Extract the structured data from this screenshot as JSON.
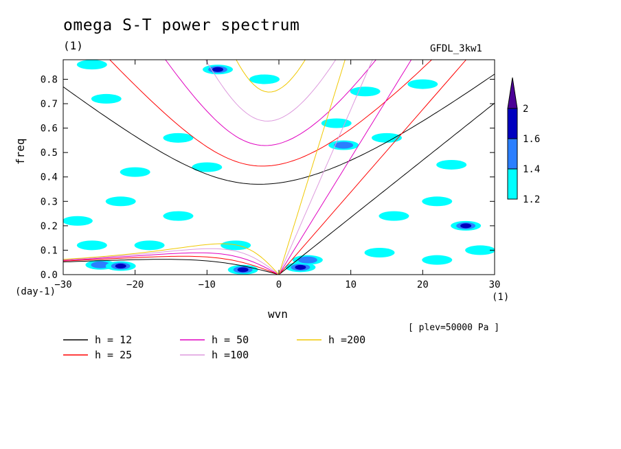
{
  "title": "omega S-T power spectrum",
  "subtitle": "(1)",
  "model": "GFDL_3kw1",
  "pressure_note": "[ plev=50000 Pa ]",
  "chart_data": {
    "type": "heatmap",
    "title": "omega S-T power spectrum",
    "xlabel": "wvn",
    "ylabel": "freq",
    "x_unit": "(1)",
    "y_unit": "(day-1)",
    "xlim": [
      -30,
      30
    ],
    "ylim": [
      0,
      0.88
    ],
    "x_ticks": [
      -30,
      -20,
      -10,
      0,
      10,
      20,
      30
    ],
    "y_ticks": [
      0.0,
      0.1,
      0.2,
      0.3,
      0.4,
      0.5,
      0.6,
      0.7,
      0.8
    ],
    "colorbar": {
      "levels": [
        "1.2",
        "1.4",
        "1.6",
        "2"
      ],
      "colors": [
        "#00ffff",
        "#2b7fff",
        "#0000bf",
        "#4b0096"
      ]
    },
    "contour_regions": [
      {
        "x": -24.8,
        "y": 0.04,
        "level": 1.4
      },
      {
        "x": -22,
        "y": 0.035,
        "level": 1.6
      },
      {
        "x": -5,
        "y": 0.02,
        "level": 1.6
      },
      {
        "x": 3,
        "y": 0.03,
        "level": 2.0
      },
      {
        "x": 4,
        "y": 0.06,
        "level": 1.4
      },
      {
        "x": -8.5,
        "y": 0.84,
        "level": 1.6
      },
      {
        "x": 26,
        "y": 0.2,
        "level": 1.6
      },
      {
        "x": -24,
        "y": 0.72,
        "level": 1.2
      },
      {
        "x": -14,
        "y": 0.56,
        "level": 1.2
      },
      {
        "x": -20,
        "y": 0.42,
        "level": 1.2
      },
      {
        "x": -10,
        "y": 0.44,
        "level": 1.2
      },
      {
        "x": -2,
        "y": 0.8,
        "level": 1.2
      },
      {
        "x": 8,
        "y": 0.62,
        "level": 1.2
      },
      {
        "x": 9,
        "y": 0.53,
        "level": 1.4
      },
      {
        "x": 15,
        "y": 0.56,
        "level": 1.2
      },
      {
        "x": 20,
        "y": 0.78,
        "level": 1.2
      },
      {
        "x": 12,
        "y": 0.75,
        "level": 1.2
      },
      {
        "x": -26,
        "y": 0.12,
        "level": 1.2
      },
      {
        "x": -18,
        "y": 0.12,
        "level": 1.2
      },
      {
        "x": -6,
        "y": 0.12,
        "level": 1.2
      },
      {
        "x": 14,
        "y": 0.09,
        "level": 1.2
      },
      {
        "x": 22,
        "y": 0.06,
        "level": 1.2
      },
      {
        "x": 28,
        "y": 0.1,
        "level": 1.2
      },
      {
        "x": -28,
        "y": 0.22,
        "level": 1.2
      },
      {
        "x": -14,
        "y": 0.24,
        "level": 1.2
      },
      {
        "x": 16,
        "y": 0.24,
        "level": 1.2
      },
      {
        "x": 22,
        "y": 0.3,
        "level": 1.2
      },
      {
        "x": -26,
        "y": 0.86,
        "level": 1.2
      },
      {
        "x": -22,
        "y": 0.3,
        "level": 1.2
      },
      {
        "x": 24,
        "y": 0.45,
        "level": 1.2
      }
    ],
    "dispersion_curves": [
      {
        "h": 12,
        "color": "#000000"
      },
      {
        "h": 25,
        "color": "#ff0000"
      },
      {
        "h": 50,
        "color": "#e000c0"
      },
      {
        "h": 100,
        "color": "#dd99dd"
      },
      {
        "h": 200,
        "color": "#f0c800"
      }
    ]
  },
  "legend": [
    {
      "label": "h = 12",
      "color": "#000000"
    },
    {
      "label": "h = 25",
      "color": "#ff0000"
    },
    {
      "label": "h = 50",
      "color": "#e000c0"
    },
    {
      "label": "h =100",
      "color": "#dd99dd"
    },
    {
      "label": "h =200",
      "color": "#f0c800"
    }
  ]
}
